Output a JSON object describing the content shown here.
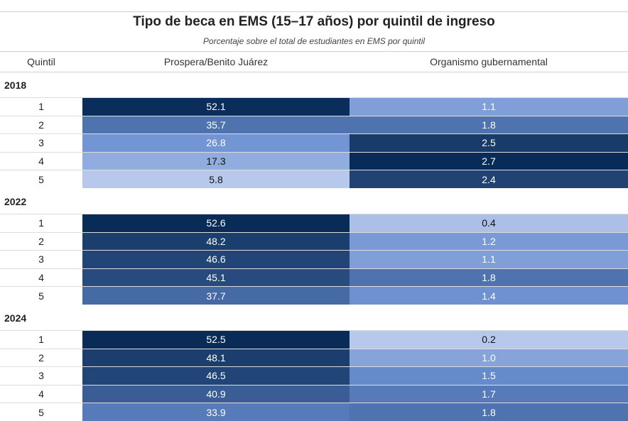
{
  "header": {
    "title": "Tipo de beca en EMS (15–17 años) por quintil de ingreso",
    "subtitle": "Porcentaje sobre el total de estudiantes en EMS por quintil"
  },
  "table": {
    "columns": [
      "Quintil",
      "Prospera/Benito Juárez",
      "Organismo gubernamental"
    ],
    "groups": [
      {
        "year": "2018",
        "rows": [
          [
            "1",
            "52.1",
            "1.1"
          ],
          [
            "2",
            "35.7",
            "1.8"
          ],
          [
            "3",
            "26.8",
            "2.5"
          ],
          [
            "4",
            "17.3",
            "2.7"
          ],
          [
            "5",
            "5.8",
            "2.4"
          ]
        ]
      },
      {
        "year": "2022",
        "rows": [
          [
            "1",
            "52.6",
            "0.4"
          ],
          [
            "2",
            "48.2",
            "1.2"
          ],
          [
            "3",
            "46.6",
            "1.1"
          ],
          [
            "4",
            "45.1",
            "1.8"
          ],
          [
            "5",
            "37.7",
            "1.4"
          ]
        ]
      },
      {
        "year": "2024",
        "rows": [
          [
            "1",
            "52.5",
            "0.2"
          ],
          [
            "2",
            "48.1",
            "1.0"
          ],
          [
            "3",
            "46.5",
            "1.5"
          ],
          [
            "4",
            "40.9",
            "1.7"
          ],
          [
            "5",
            "33.9",
            "1.8"
          ]
        ]
      }
    ]
  }
}
